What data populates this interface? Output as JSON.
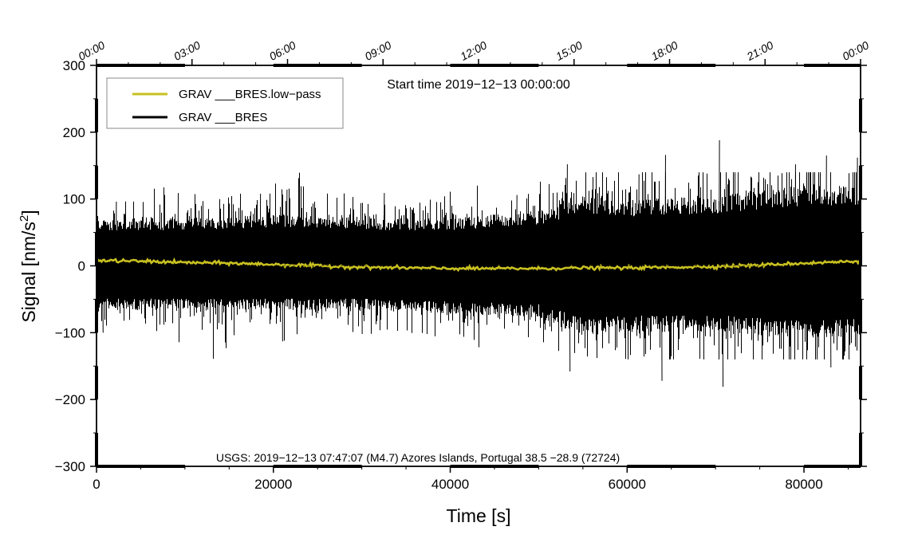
{
  "chart_data": {
    "type": "line",
    "title": "",
    "xlabel": "Time [s]",
    "ylabel_main": "Signal [nm/s",
    "ylabel_sup": "2",
    "ylabel_end": "]",
    "xlim": [
      0,
      86400
    ],
    "ylim": [
      -300,
      300
    ],
    "x_ticks": [
      0,
      20000,
      40000,
      60000,
      80000
    ],
    "x_tick_labels": [
      "0",
      "20000",
      "40000",
      "60000",
      "80000"
    ],
    "y_ticks": [
      -300,
      -200,
      -100,
      0,
      100,
      200,
      300
    ],
    "y_tick_labels": [
      "−300",
      "−200",
      "−100",
      "0",
      "100",
      "200",
      "300"
    ],
    "top_ticks_seconds": [
      0,
      10800,
      21600,
      32400,
      43200,
      54000,
      64800,
      75600,
      86400
    ],
    "top_tick_labels": [
      "00:00",
      "03:00",
      "06:00",
      "09:00",
      "12:00",
      "15:00",
      "18:00",
      "21:00",
      "00:00"
    ],
    "start_time_annotation": "Start time 2019−12−13 00:00:00",
    "event_annotation": "USGS: 2019−12−13 07:47:07 (M4.7) Azores Islands, Portugal 38.5 −28.9 (72724)",
    "legend_position": "top-left",
    "series": [
      {
        "name": "GRAV ___BRES.low−pass",
        "color": "#c8c020",
        "style": "smooth",
        "x": [
          0,
          5000,
          10000,
          15000,
          20000,
          25000,
          30000,
          35000,
          40000,
          45000,
          50000,
          55000,
          60000,
          65000,
          70000,
          75000,
          80000,
          86400
        ],
        "y": [
          8,
          7,
          5,
          4,
          2,
          0,
          -2,
          -3,
          -4,
          -4,
          -4,
          -3,
          -3,
          -2,
          -1,
          1,
          4,
          7
        ]
      },
      {
        "name": "GRAV ___BRES",
        "color": "#000000",
        "style": "noise",
        "envelope_x": [
          0,
          10000,
          20000,
          30000,
          40000,
          50000,
          55000,
          60000,
          70000,
          80000,
          86400
        ],
        "envelope_upper": [
          65,
          65,
          70,
          65,
          65,
          75,
          95,
          90,
          95,
          110,
          110
        ],
        "envelope_lower": [
          -60,
          -60,
          -60,
          -60,
          -65,
          -70,
          -95,
          -90,
          -90,
          -100,
          -95
        ],
        "peaks": [
          {
            "x": 700,
            "y": -100
          },
          {
            "x": 2200,
            "y": 96
          },
          {
            "x": 9200,
            "y": 109
          },
          {
            "x": 18500,
            "y": 108
          },
          {
            "x": 21500,
            "y": 114
          },
          {
            "x": 21000,
            "y": -113
          },
          {
            "x": 30000,
            "y": -102
          },
          {
            "x": 32500,
            "y": 109
          },
          {
            "x": 37700,
            "y": 99
          },
          {
            "x": 47500,
            "y": 106
          },
          {
            "x": 53200,
            "y": 152
          },
          {
            "x": 53500,
            "y": -158
          },
          {
            "x": 61300,
            "y": 137
          },
          {
            "x": 63900,
            "y": -172
          },
          {
            "x": 64300,
            "y": 166
          },
          {
            "x": 70400,
            "y": 188
          },
          {
            "x": 70800,
            "y": -181
          },
          {
            "x": 79000,
            "y": 152
          },
          {
            "x": 82500,
            "y": 165
          },
          {
            "x": 83000,
            "y": -152
          },
          {
            "x": 86000,
            "y": 162
          }
        ]
      }
    ]
  }
}
